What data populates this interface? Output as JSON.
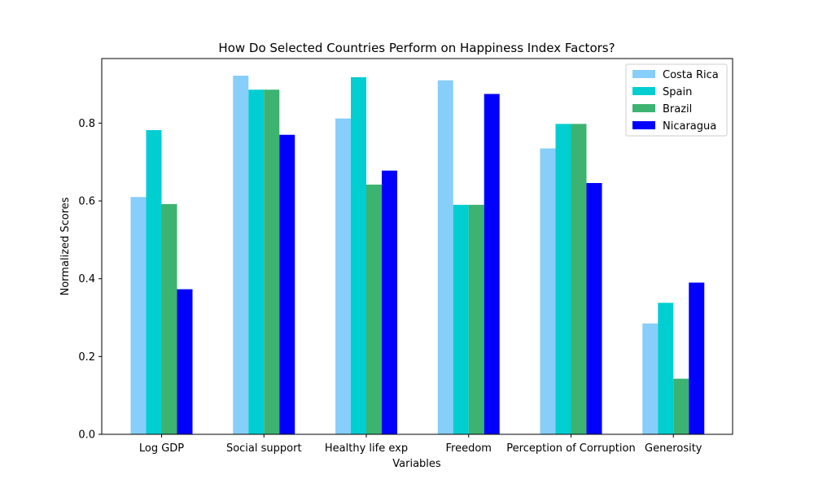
{
  "chart_data": {
    "type": "bar",
    "title": "How Do Selected Countries Perform on Happiness Index Factors?",
    "xlabel": "Variables",
    "ylabel": "Normalized Scores",
    "categories": [
      "Log GDP",
      "Social support",
      "Healthy life exp",
      "Freedom",
      "Perception of Corruption",
      "Generosity"
    ],
    "series": [
      {
        "name": "Costa Rica",
        "color": "#87cefa",
        "values": [
          0.61,
          0.922,
          0.812,
          0.91,
          0.735,
          0.285
        ]
      },
      {
        "name": "Spain",
        "color": "#00ced1",
        "values": [
          0.782,
          0.886,
          0.918,
          0.59,
          0.798,
          0.338
        ]
      },
      {
        "name": "Brazil",
        "color": "#3cb371",
        "values": [
          0.592,
          0.886,
          0.642,
          0.59,
          0.798,
          0.143
        ]
      },
      {
        "name": "Nicaragua",
        "color": "#0000ff",
        "values": [
          0.373,
          0.77,
          0.678,
          0.875,
          0.646,
          0.39
        ]
      }
    ],
    "ylim": [
      0,
      0.966
    ],
    "yticks": [
      0.0,
      0.2,
      0.4,
      0.6,
      0.8
    ],
    "ytick_labels": [
      "0.0",
      "0.2",
      "0.4",
      "0.6",
      "0.8"
    ],
    "grid": false,
    "legend_position": "top-right"
  }
}
